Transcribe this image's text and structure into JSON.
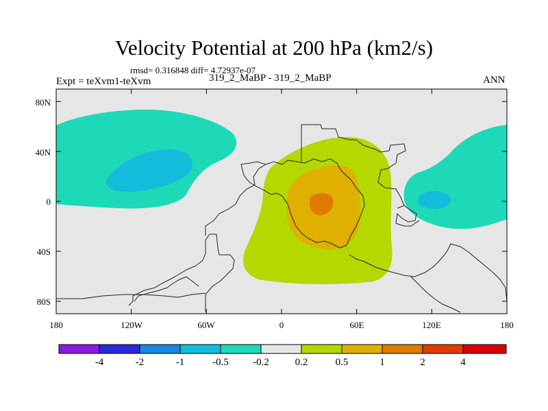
{
  "map": {
    "title": "Velocity Potential at 200 hPa (km2/s)",
    "stats": "rmsd= 0.316848 diff= 4.72937e-07",
    "left_label": "Expt = teXvm1-teXvm",
    "center_label": "319_2_MaBP - 319_2_MaBP",
    "right_label": "ANN",
    "lat_ticks": [
      {
        "label": "80N",
        "lat": 80
      },
      {
        "label": "40N",
        "lat": 40
      },
      {
        "label": "0",
        "lat": 0
      },
      {
        "label": "40S",
        "lat": -40
      },
      {
        "label": "80S",
        "lat": -80
      }
    ],
    "lon_ticks": [
      {
        "label": "180",
        "lon": -180
      },
      {
        "label": "120W",
        "lon": -120
      },
      {
        "label": "60W",
        "lon": -60
      },
      {
        "label": "0",
        "lon": 0
      },
      {
        "label": "60E",
        "lon": 60
      },
      {
        "label": "120E",
        "lon": 120
      },
      {
        "label": "180",
        "lon": 180
      }
    ]
  },
  "colorbar": {
    "colors": [
      "#8a1be0",
      "#2a2ad8",
      "#1a86dc",
      "#14bcdc",
      "#1ed9b8",
      "#e6e6e6",
      "#b4d800",
      "#e0b000",
      "#e07a00",
      "#e03a00",
      "#d80000"
    ],
    "labels": [
      "-4",
      "-2",
      "-1",
      "-0.5",
      "-0.2",
      "0.2",
      "0.5",
      "1",
      "2",
      "4"
    ]
  }
}
